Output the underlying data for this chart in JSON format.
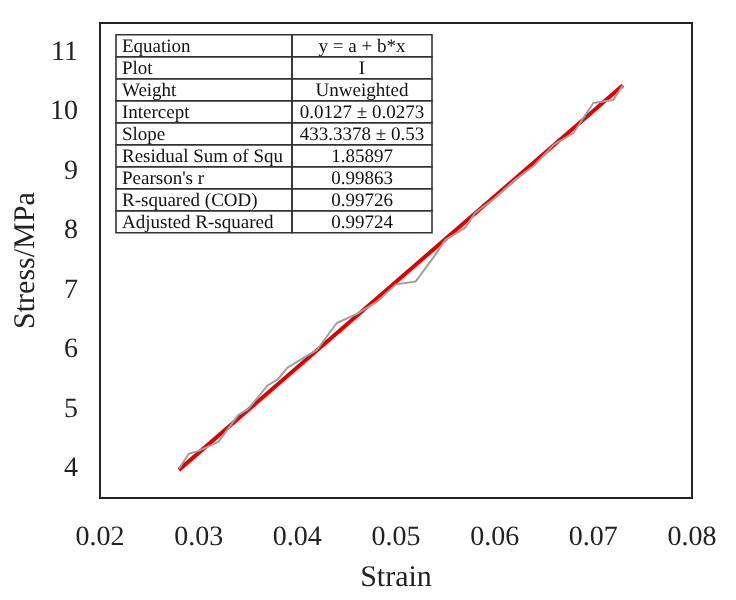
{
  "chart_data": {
    "type": "line",
    "xlabel": "Strain",
    "ylabel": "Stress/MPa",
    "xlim": [
      0.02,
      0.08
    ],
    "xticks": [
      0.02,
      0.03,
      0.04,
      0.05,
      0.06,
      0.07,
      0.08
    ],
    "ylim": [
      3.5,
      11.5
    ],
    "yticks": [
      4,
      5,
      6,
      7,
      8,
      9,
      10,
      11
    ],
    "grid": false,
    "legend": false,
    "marker": "none",
    "line_style": "solid",
    "annotations": [
      "Equation",
      "y = a + b*x",
      "Plot",
      "I",
      "Weight",
      "Unweighted",
      "Intercept",
      "0.0127 ± 0.0273",
      "Slope",
      "433.3378 ± 0.53",
      "Residual Sum of Squ",
      "1.85897",
      "Pearson's r",
      "0.99863",
      "R-squared (COD)",
      "0.99726",
      "Adjusted R-squared",
      "0.99724"
    ],
    "series": [
      {
        "color": "#a0a0a0",
        "x": [
          0.028,
          0.029,
          0.03,
          0.032,
          0.034,
          0.035,
          0.037,
          0.038,
          0.039,
          0.041,
          0.042,
          0.044,
          0.046,
          0.048,
          0.05,
          0.052,
          0.054,
          0.055,
          0.057,
          0.058,
          0.06,
          0.062,
          0.064,
          0.066,
          0.068,
          0.07,
          0.072,
          0.073
        ],
        "values": [
          4.0,
          4.25,
          4.3,
          4.45,
          4.9,
          5.0,
          5.4,
          5.5,
          5.7,
          5.9,
          6.0,
          6.45,
          6.6,
          6.8,
          7.1,
          7.15,
          7.6,
          7.85,
          8.05,
          8.3,
          8.55,
          8.85,
          9.1,
          9.45,
          9.65,
          10.15,
          10.2,
          10.45
        ]
      },
      {
        "color": "#e00000",
        "x": [
          0.028,
          0.073
        ],
        "values": [
          3.98,
          10.45
        ]
      }
    ]
  }
}
